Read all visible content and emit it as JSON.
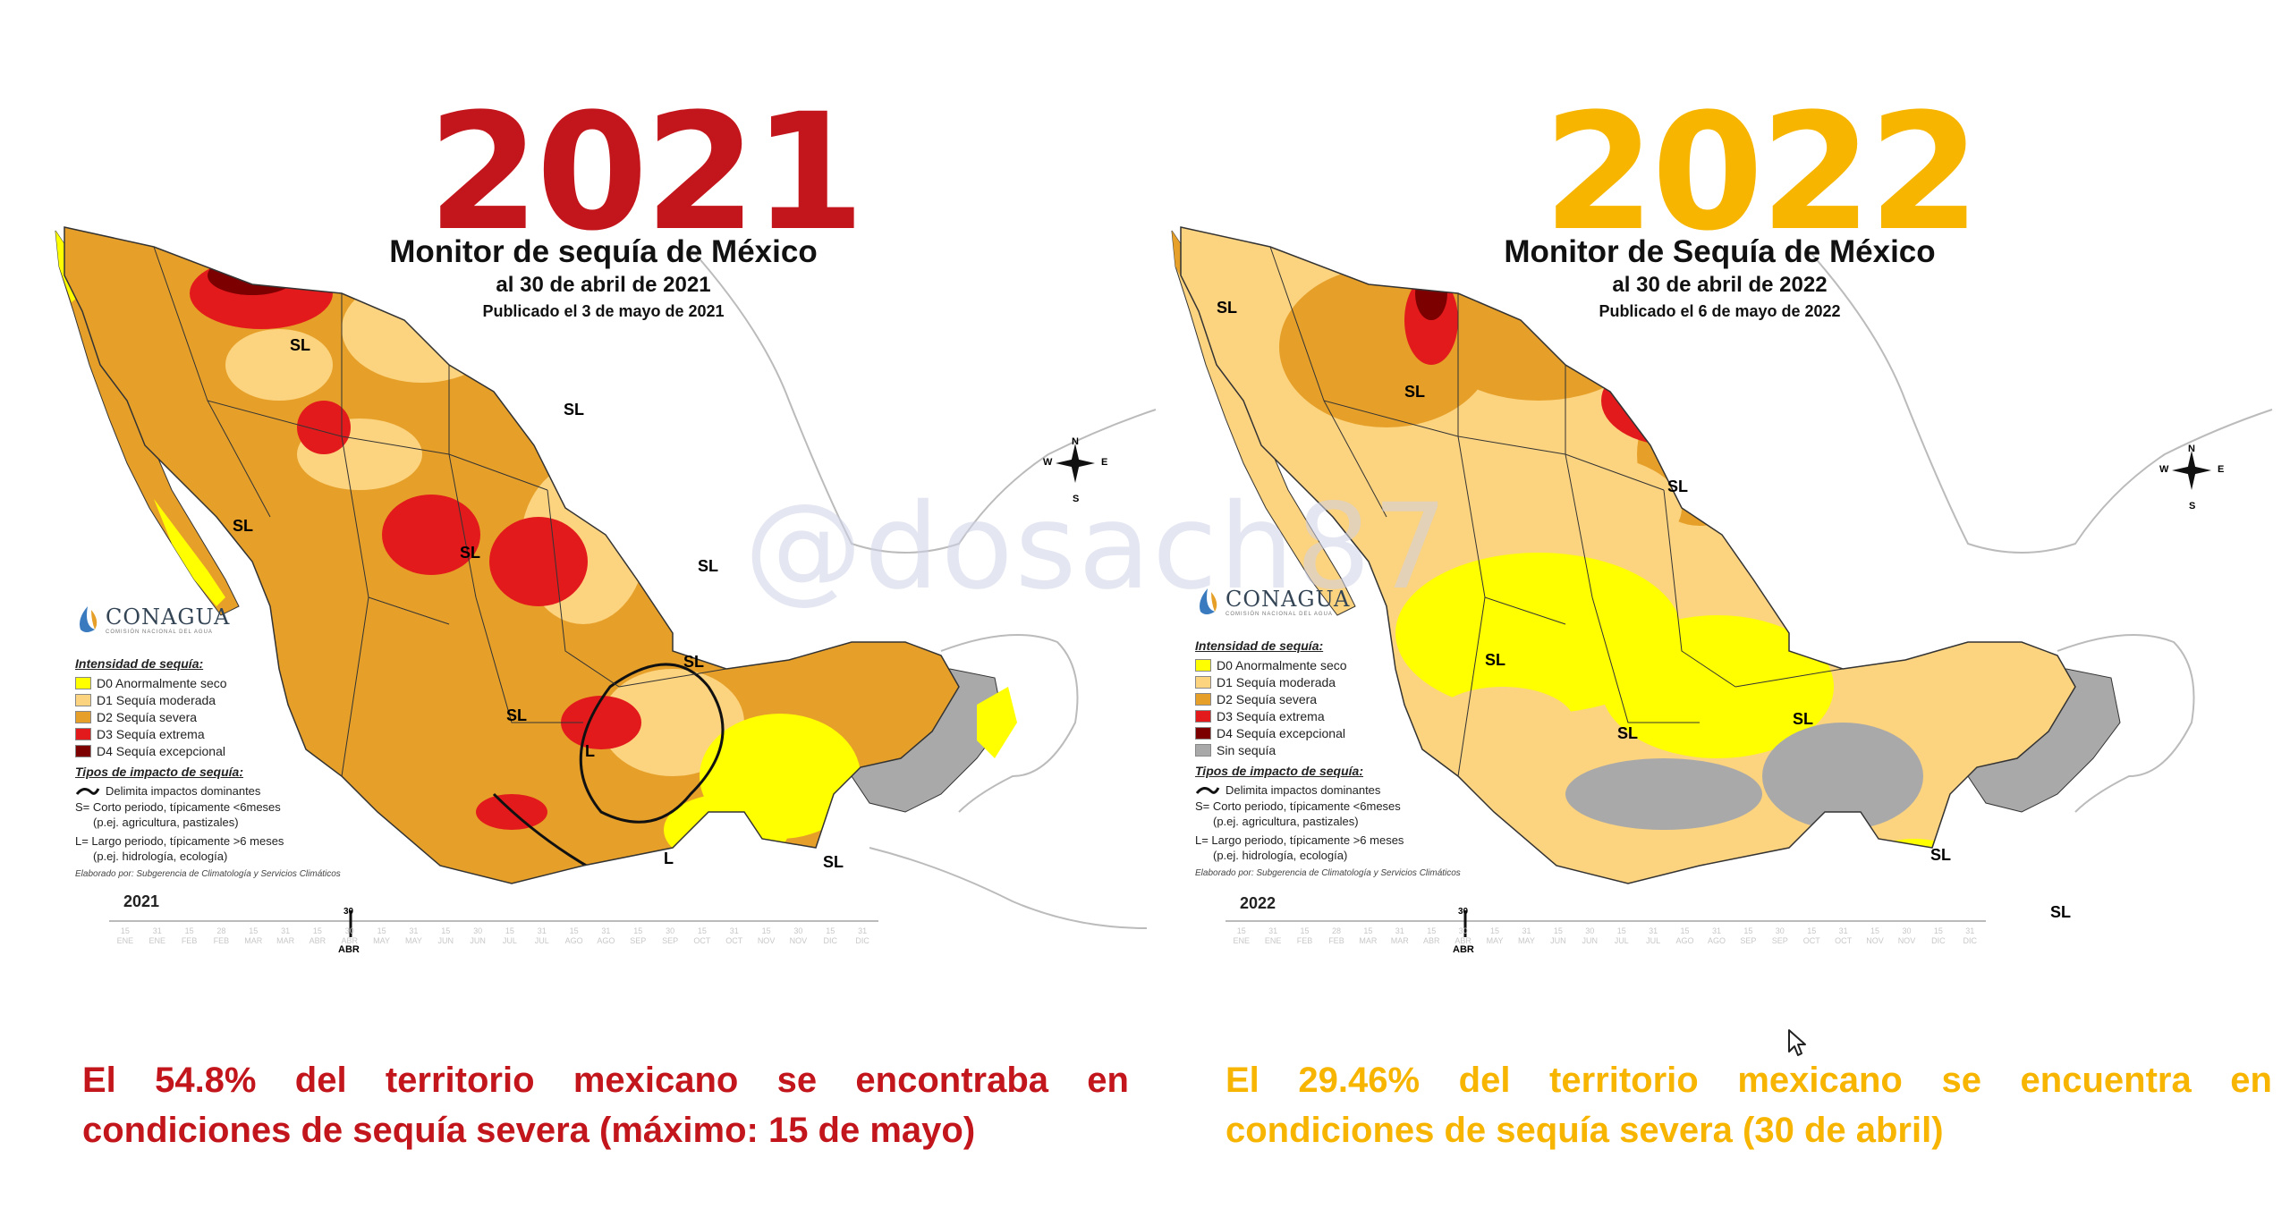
{
  "left": {
    "year": "2021",
    "title": "Monitor de sequía de México",
    "subtitle": "al 30 de abril de 2021",
    "published": "Publicado el 3 de mayo de 2021",
    "caption": "El 54.8% del territorio mexicano se encontraba en condiciones de sequía severa (máximo: 15 de mayo)",
    "timeline_year": "2021",
    "region_labels": [
      "SL",
      "SL",
      "SL",
      "SL",
      "SL",
      "SL",
      "SL",
      "L",
      "L"
    ],
    "legend": {
      "intensity_title": "Intensidad de sequía:",
      "items": [
        {
          "label": "D0 Anormalmente seco",
          "color": "#ffff00"
        },
        {
          "label": "D1 Sequía moderada",
          "color": "#fcd37f"
        },
        {
          "label": "D2 Sequía severa",
          "color": "#e6a029"
        },
        {
          "label": "D3 Sequía extrema",
          "color": "#e31a1c"
        },
        {
          "label": "D4 Sequía excepcional",
          "color": "#7d0000"
        }
      ],
      "impact_title": "Tipos de impacto de sequía:",
      "impact_line": "Delimita impactos dominantes",
      "short_term_1": "S= Corto periodo, típicamente <6meses",
      "short_term_2": "(p.ej. agricultura, pastizales)",
      "long_term_1": "L= Largo periodo, típicamente >6 meses",
      "long_term_2": "(p.ej. hidrología, ecología)",
      "credit": "Elaborado por: Subgerencia de Climatología y Servicios Climáticos"
    },
    "percent_severe": 54.8
  },
  "right": {
    "year": "2022",
    "title": "Monitor de Sequía de México",
    "subtitle": "al 30 de abril de 2022",
    "published": "Publicado el 6 de mayo de 2022",
    "caption": "El 29.46% del territorio mexicano se encuentra en condiciones de sequía severa (30 de abril)",
    "timeline_year": "2022",
    "region_labels": [
      "SL",
      "SL",
      "SL",
      "SL",
      "SL",
      "SL",
      "SL",
      "SL"
    ],
    "legend": {
      "intensity_title": "Intensidad de sequía:",
      "items": [
        {
          "label": "D0 Anormalmente seco",
          "color": "#ffff00"
        },
        {
          "label": "D1 Sequía moderada",
          "color": "#fcd37f"
        },
        {
          "label": "D2 Sequía severa",
          "color": "#e6a029"
        },
        {
          "label": "D3 Sequía extrema",
          "color": "#e31a1c"
        },
        {
          "label": "D4 Sequía excepcional",
          "color": "#7d0000"
        },
        {
          "label": "Sin sequía",
          "color": "#a9a9a9"
        }
      ],
      "impact_title": "Tipos de impacto de sequía:",
      "impact_line": "Delimita impactos dominantes",
      "short_term_1": "S= Corto periodo, típicamente <6meses",
      "short_term_2": "(p.ej. agricultura, pastizales)",
      "long_term_1": "L= Largo periodo, típicamente >6 meses",
      "long_term_2": "(p.ej. hidrología, ecología)",
      "credit": "Elaborado por: Subgerencia de Climatología y Servicios Climáticos"
    },
    "percent_severe": 29.46
  },
  "logo": {
    "name": "CONAGUA",
    "sub": "COMISIÓN NACIONAL DEL AGUA"
  },
  "compass": {
    "n": "N",
    "s": "S",
    "e": "E",
    "w": "W"
  },
  "timeline": {
    "ticks": [
      "15",
      "31",
      "15",
      "28",
      "15",
      "31",
      "15",
      "30",
      "15",
      "31",
      "15",
      "30",
      "15",
      "31",
      "15",
      "31",
      "15",
      "30",
      "15",
      "31",
      "15",
      "30",
      "15",
      "31"
    ],
    "months": [
      "ENE",
      "ENE",
      "FEB",
      "FEB",
      "MAR",
      "MAR",
      "ABR",
      "ABR",
      "MAY",
      "MAY",
      "JUN",
      "JUN",
      "JUL",
      "JUL",
      "AGO",
      "AGO",
      "SEP",
      "SEP",
      "OCT",
      "OCT",
      "NOV",
      "NOV",
      "DIC",
      "DIC"
    ],
    "marker_day": "30",
    "marker_month": "ABR"
  },
  "watermark": "@dosach87"
}
